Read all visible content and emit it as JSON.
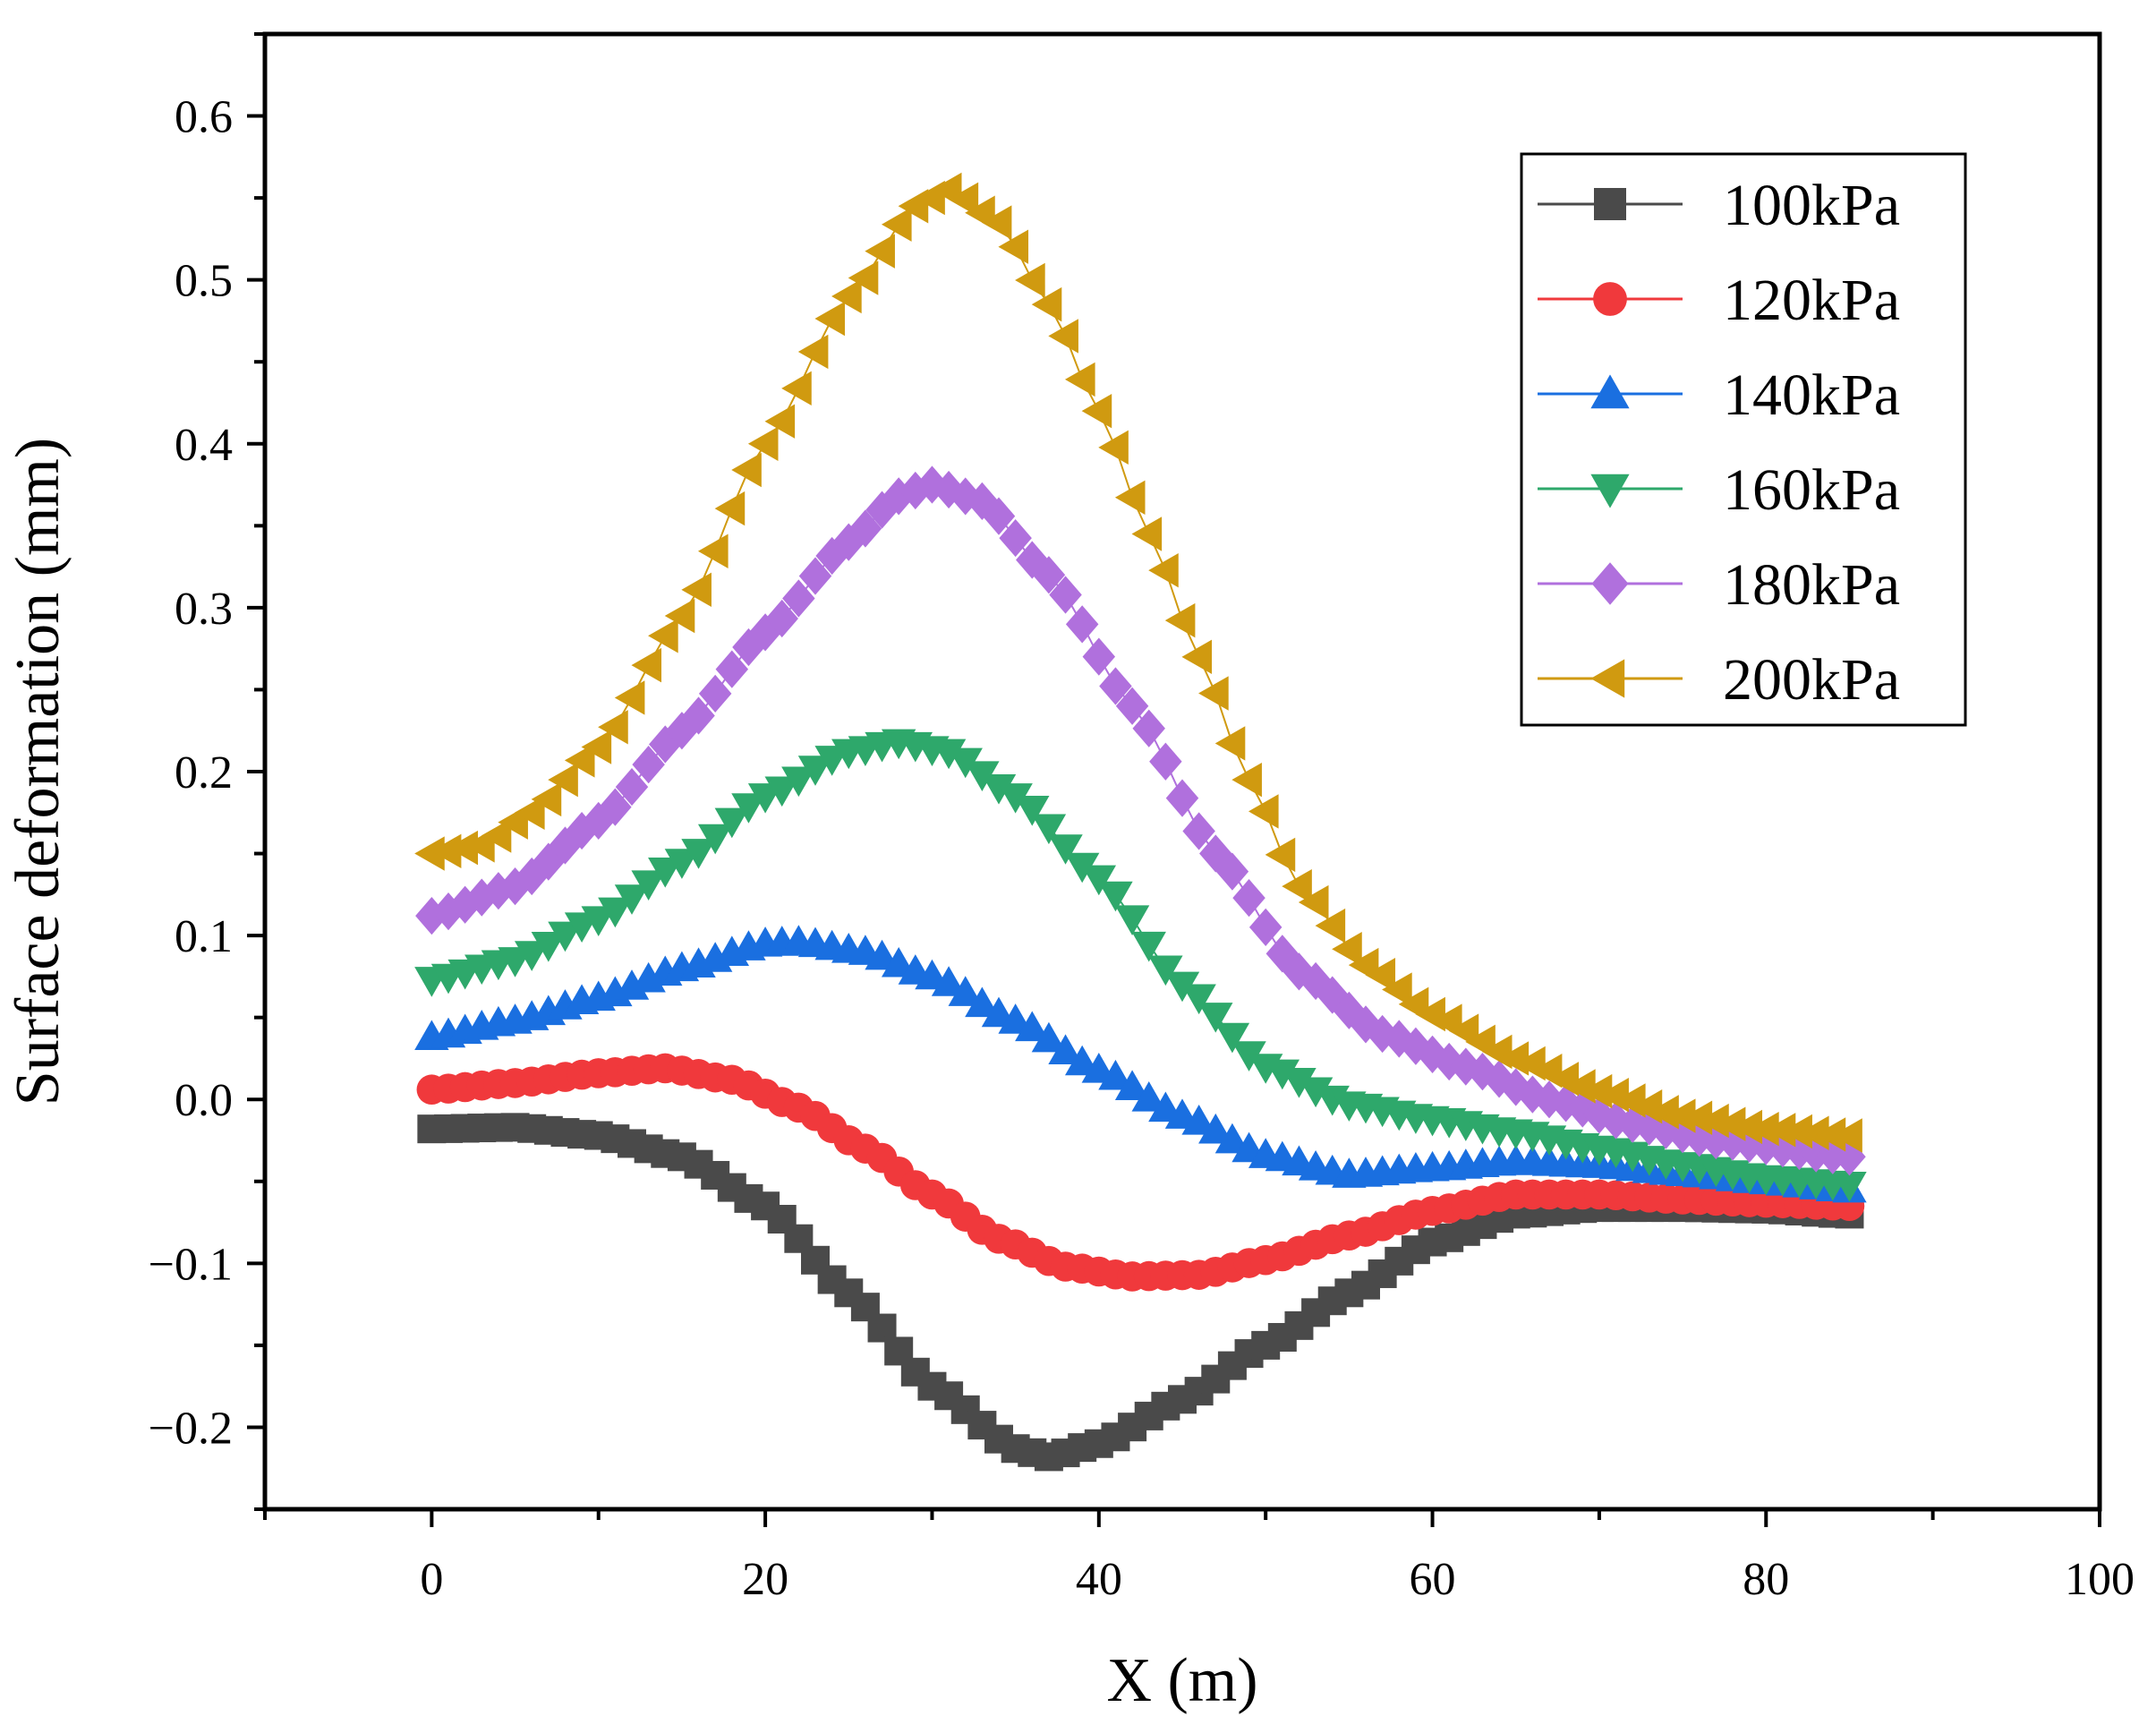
{
  "chart_data": {
    "type": "scatter",
    "title": "",
    "xlabel": "X (m)",
    "ylabel": "Surface deformation (mm)",
    "xlim": [
      -10,
      100
    ],
    "ylim": [
      -0.25,
      0.65
    ],
    "xticks": [
      0,
      20,
      40,
      60,
      80,
      100
    ],
    "xtick_labels": [
      "0",
      "20",
      "40",
      "60",
      "80",
      "100"
    ],
    "yticks": [
      -0.2,
      -0.1,
      0.0,
      0.1,
      0.2,
      0.3,
      0.4,
      0.5,
      0.6
    ],
    "ytick_labels": [
      "−0.2",
      "−0.1",
      "0.0",
      "0.1",
      "0.2",
      "0.3",
      "0.4",
      "0.5",
      "0.6"
    ],
    "grid": false,
    "legend_position": "top-right",
    "x_range": [
      0,
      85
    ],
    "series": [
      {
        "name": "100kPa",
        "color": "#4a4a4a",
        "marker": "square",
        "knots": [
          [
            0,
            -0.018
          ],
          [
            5,
            -0.017
          ],
          [
            10,
            -0.022
          ],
          [
            15,
            -0.035
          ],
          [
            20,
            -0.065
          ],
          [
            25,
            -0.118
          ],
          [
            30,
            -0.175
          ],
          [
            35,
            -0.213
          ],
          [
            37,
            -0.218
          ],
          [
            40,
            -0.21
          ],
          [
            45,
            -0.183
          ],
          [
            50,
            -0.15
          ],
          [
            55,
            -0.118
          ],
          [
            60,
            -0.087
          ],
          [
            65,
            -0.07
          ],
          [
            70,
            -0.066
          ],
          [
            75,
            -0.066
          ],
          [
            80,
            -0.067
          ],
          [
            85,
            -0.07
          ]
        ]
      },
      {
        "name": "120kPa",
        "color": "#f0393c",
        "marker": "circle",
        "knots": [
          [
            0,
            0.006
          ],
          [
            5,
            0.01
          ],
          [
            10,
            0.016
          ],
          [
            14,
            0.019
          ],
          [
            18,
            0.012
          ],
          [
            22,
            -0.005
          ],
          [
            26,
            -0.03
          ],
          [
            30,
            -0.058
          ],
          [
            34,
            -0.085
          ],
          [
            38,
            -0.102
          ],
          [
            42,
            -0.108
          ],
          [
            46,
            -0.107
          ],
          [
            50,
            -0.098
          ],
          [
            55,
            -0.083
          ],
          [
            60,
            -0.068
          ],
          [
            65,
            -0.058
          ],
          [
            70,
            -0.058
          ],
          [
            75,
            -0.061
          ],
          [
            80,
            -0.063
          ],
          [
            85,
            -0.065
          ]
        ]
      },
      {
        "name": "140kPa",
        "color": "#1a6fe0",
        "marker": "triangle-up",
        "knots": [
          [
            0,
            0.038
          ],
          [
            5,
            0.048
          ],
          [
            10,
            0.062
          ],
          [
            15,
            0.08
          ],
          [
            20,
            0.095
          ],
          [
            22,
            0.096
          ],
          [
            26,
            0.09
          ],
          [
            30,
            0.075
          ],
          [
            35,
            0.048
          ],
          [
            40,
            0.018
          ],
          [
            45,
            -0.01
          ],
          [
            50,
            -0.034
          ],
          [
            55,
            -0.046
          ],
          [
            60,
            -0.042
          ],
          [
            65,
            -0.038
          ],
          [
            70,
            -0.04
          ],
          [
            75,
            -0.045
          ],
          [
            80,
            -0.05
          ],
          [
            85,
            -0.055
          ]
        ]
      },
      {
        "name": "160kPa",
        "color": "#2ea86b",
        "marker": "triangle-down",
        "knots": [
          [
            0,
            0.073
          ],
          [
            5,
            0.085
          ],
          [
            10,
            0.11
          ],
          [
            15,
            0.145
          ],
          [
            20,
            0.185
          ],
          [
            25,
            0.212
          ],
          [
            28,
            0.218
          ],
          [
            31,
            0.212
          ],
          [
            35,
            0.185
          ],
          [
            40,
            0.135
          ],
          [
            45,
            0.07
          ],
          [
            50,
            0.02
          ],
          [
            55,
            -0.003
          ],
          [
            60,
            -0.012
          ],
          [
            65,
            -0.02
          ],
          [
            70,
            -0.03
          ],
          [
            75,
            -0.04
          ],
          [
            80,
            -0.048
          ],
          [
            85,
            -0.052
          ]
        ]
      },
      {
        "name": "180kPa",
        "color": "#b070dd",
        "marker": "diamond",
        "knots": [
          [
            0,
            0.112
          ],
          [
            5,
            0.13
          ],
          [
            10,
            0.17
          ],
          [
            15,
            0.225
          ],
          [
            20,
            0.285
          ],
          [
            25,
            0.34
          ],
          [
            28,
            0.368
          ],
          [
            30,
            0.375
          ],
          [
            33,
            0.365
          ],
          [
            37,
            0.32
          ],
          [
            42,
            0.24
          ],
          [
            47,
            0.15
          ],
          [
            52,
            0.078
          ],
          [
            57,
            0.04
          ],
          [
            62,
            0.02
          ],
          [
            67,
            0.0
          ],
          [
            72,
            -0.015
          ],
          [
            77,
            -0.025
          ],
          [
            85,
            -0.035
          ]
        ]
      },
      {
        "name": "200kPa",
        "color": "#d09a10",
        "marker": "triangle-left",
        "knots": [
          [
            0,
            0.15
          ],
          [
            3,
            0.155
          ],
          [
            6,
            0.175
          ],
          [
            10,
            0.215
          ],
          [
            15,
            0.295
          ],
          [
            20,
            0.4
          ],
          [
            25,
            0.49
          ],
          [
            29,
            0.545
          ],
          [
            31,
            0.555
          ],
          [
            34,
            0.535
          ],
          [
            37,
            0.485
          ],
          [
            40,
            0.42
          ],
          [
            43,
            0.345
          ],
          [
            46,
            0.27
          ],
          [
            49,
            0.195
          ],
          [
            52,
            0.13
          ],
          [
            56,
            0.082
          ],
          [
            60,
            0.052
          ],
          [
            65,
            0.025
          ],
          [
            70,
            0.005
          ],
          [
            75,
            -0.01
          ],
          [
            80,
            -0.018
          ],
          [
            85,
            -0.022
          ]
        ]
      }
    ]
  }
}
